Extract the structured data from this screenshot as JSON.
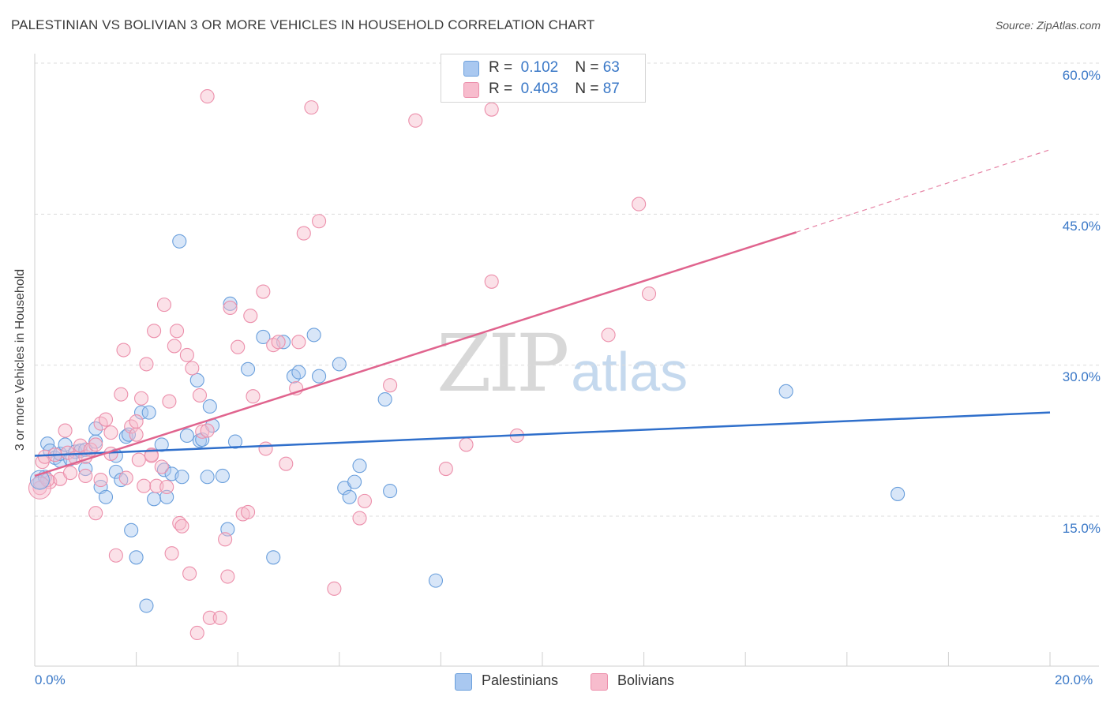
{
  "header": {
    "title": "PALESTINIAN VS BOLIVIAN 3 OR MORE VEHICLES IN HOUSEHOLD CORRELATION CHART",
    "source": "Source: ZipAtlas.com"
  },
  "watermark": {
    "zip": "ZIP",
    "atlas": "atlas"
  },
  "colors": {
    "palestinian_fill": "#a9c8f0",
    "palestinian_stroke": "#6a9fdc",
    "palestinian_line": "#2f6fcb",
    "bolivian_fill": "#f7bccd",
    "bolivian_stroke": "#ec8fab",
    "bolivian_line": "#e0648e",
    "accent_text": "#3a78c7"
  },
  "legend": {
    "rows": [
      {
        "r_label": "R =",
        "r_value": "0.102",
        "n_label": "N =",
        "n_value": "63"
      },
      {
        "r_label": "R =",
        "r_value": "0.403",
        "n_label": "N =",
        "n_value": "87"
      }
    ]
  },
  "bottom_legend": [
    "Palestinians",
    "Bolivians"
  ],
  "chart_data": {
    "type": "scatter",
    "title": "PALESTINIAN VS BOLIVIAN 3 OR MORE VEHICLES IN HOUSEHOLD CORRELATION CHART",
    "xlabel": "",
    "ylabel": "3 or more Vehicles in Household",
    "xlim": [
      0,
      20
    ],
    "ylim": [
      0,
      62
    ],
    "x_tick_labels": [
      "0.0%",
      "20.0%"
    ],
    "y_ticks": [
      15,
      30,
      45,
      60
    ],
    "y_tick_labels": [
      "15.0%",
      "30.0%",
      "45.0%",
      "60.0%"
    ],
    "grid": true,
    "series": [
      {
        "name": "Palestinians",
        "R": 0.102,
        "N": 63,
        "trend": {
          "x0": 0,
          "y0": 21.0,
          "x1": 20,
          "y1": 25.3
        },
        "points": [
          [
            0.1,
            18.4
          ],
          [
            0.2,
            18.9
          ],
          [
            0.25,
            22.2
          ],
          [
            0.3,
            21.5
          ],
          [
            0.4,
            20.8
          ],
          [
            0.5,
            20.5
          ],
          [
            0.5,
            21.2
          ],
          [
            0.6,
            22.1
          ],
          [
            0.7,
            20.7
          ],
          [
            0.8,
            21.4
          ],
          [
            0.9,
            21.5
          ],
          [
            1.0,
            21.6
          ],
          [
            1.0,
            19.7
          ],
          [
            1.2,
            23.7
          ],
          [
            1.2,
            22.4
          ],
          [
            1.3,
            17.9
          ],
          [
            1.4,
            16.9
          ],
          [
            1.6,
            21.0
          ],
          [
            1.6,
            19.4
          ],
          [
            1.7,
            18.6
          ],
          [
            1.8,
            22.9
          ],
          [
            1.85,
            23.1
          ],
          [
            1.9,
            13.6
          ],
          [
            2.0,
            10.9
          ],
          [
            2.1,
            25.3
          ],
          [
            2.2,
            6.1
          ],
          [
            2.25,
            25.3
          ],
          [
            2.35,
            16.7
          ],
          [
            2.5,
            22.1
          ],
          [
            2.55,
            19.6
          ],
          [
            2.6,
            16.9
          ],
          [
            2.7,
            19.2
          ],
          [
            2.85,
            42.3
          ],
          [
            2.9,
            18.9
          ],
          [
            3.0,
            23.0
          ],
          [
            3.2,
            28.5
          ],
          [
            3.25,
            22.5
          ],
          [
            3.3,
            22.6
          ],
          [
            3.4,
            18.9
          ],
          [
            3.45,
            25.9
          ],
          [
            3.5,
            24.0
          ],
          [
            3.7,
            19.0
          ],
          [
            3.8,
            13.7
          ],
          [
            3.85,
            36.1
          ],
          [
            3.95,
            22.4
          ],
          [
            4.2,
            29.6
          ],
          [
            4.5,
            32.8
          ],
          [
            4.7,
            10.9
          ],
          [
            4.9,
            32.3
          ],
          [
            5.1,
            28.9
          ],
          [
            5.2,
            29.3
          ],
          [
            5.5,
            33.0
          ],
          [
            5.6,
            28.9
          ],
          [
            6.0,
            30.1
          ],
          [
            6.1,
            17.8
          ],
          [
            6.2,
            16.9
          ],
          [
            6.3,
            18.4
          ],
          [
            6.4,
            20.0
          ],
          [
            6.9,
            26.6
          ],
          [
            7.0,
            17.5
          ],
          [
            7.9,
            8.6
          ],
          [
            14.8,
            27.4
          ],
          [
            17.0,
            17.2
          ]
        ]
      },
      {
        "name": "Bolivians",
        "R": 0.403,
        "N": 87,
        "trend": {
          "x0": 0,
          "y0": 19.0,
          "x1": 15.0,
          "y1": 43.2
        },
        "trend_dashed": {
          "x0": 15.0,
          "y0": 43.2,
          "x1": 20,
          "y1": 51.4
        },
        "points": [
          [
            0.1,
            17.8
          ],
          [
            0.15,
            20.4
          ],
          [
            0.2,
            20.9
          ],
          [
            0.3,
            18.4
          ],
          [
            0.4,
            21.1
          ],
          [
            0.5,
            18.7
          ],
          [
            0.6,
            23.5
          ],
          [
            0.65,
            21.3
          ],
          [
            0.7,
            19.3
          ],
          [
            0.8,
            20.8
          ],
          [
            0.9,
            22.0
          ],
          [
            1.0,
            20.9
          ],
          [
            1.1,
            21.6
          ],
          [
            1.2,
            22.1
          ],
          [
            1.2,
            15.3
          ],
          [
            1.3,
            18.6
          ],
          [
            1.3,
            24.2
          ],
          [
            1.4,
            24.6
          ],
          [
            1.5,
            21.2
          ],
          [
            1.5,
            23.3
          ],
          [
            1.6,
            11.1
          ],
          [
            1.7,
            27.1
          ],
          [
            1.75,
            31.5
          ],
          [
            1.8,
            18.8
          ],
          [
            1.9,
            23.9
          ],
          [
            2.0,
            24.4
          ],
          [
            2.05,
            20.6
          ],
          [
            2.1,
            26.7
          ],
          [
            2.15,
            18.0
          ],
          [
            2.2,
            30.1
          ],
          [
            2.3,
            21.1
          ],
          [
            2.3,
            21.0
          ],
          [
            2.35,
            33.4
          ],
          [
            2.4,
            18.0
          ],
          [
            2.5,
            19.9
          ],
          [
            2.55,
            36.0
          ],
          [
            2.6,
            17.9
          ],
          [
            2.65,
            26.4
          ],
          [
            2.7,
            11.3
          ],
          [
            2.75,
            31.9
          ],
          [
            2.8,
            33.4
          ],
          [
            2.85,
            14.3
          ],
          [
            2.9,
            14.0
          ],
          [
            3.0,
            31.0
          ],
          [
            3.05,
            9.3
          ],
          [
            3.1,
            29.7
          ],
          [
            3.2,
            3.4
          ],
          [
            3.25,
            27.0
          ],
          [
            3.3,
            23.4
          ],
          [
            3.4,
            56.7
          ],
          [
            3.45,
            4.9
          ],
          [
            3.65,
            4.9
          ],
          [
            3.75,
            12.7
          ],
          [
            3.8,
            9.0
          ],
          [
            3.85,
            35.7
          ],
          [
            4.0,
            31.8
          ],
          [
            4.1,
            15.2
          ],
          [
            4.2,
            15.4
          ],
          [
            4.25,
            34.9
          ],
          [
            4.3,
            26.9
          ],
          [
            4.5,
            37.3
          ],
          [
            4.55,
            21.7
          ],
          [
            4.7,
            32.0
          ],
          [
            4.8,
            32.3
          ],
          [
            4.95,
            20.2
          ],
          [
            5.15,
            27.7
          ],
          [
            5.2,
            32.3
          ],
          [
            5.3,
            43.1
          ],
          [
            5.45,
            55.6
          ],
          [
            5.6,
            44.3
          ],
          [
            5.9,
            7.8
          ],
          [
            6.4,
            14.8
          ],
          [
            6.5,
            16.5
          ],
          [
            7.0,
            28.0
          ],
          [
            7.5,
            54.3
          ],
          [
            8.1,
            19.7
          ],
          [
            8.5,
            22.1
          ],
          [
            9.0,
            38.3
          ],
          [
            9.0,
            55.4
          ],
          [
            9.5,
            23.0
          ],
          [
            11.3,
            33.0
          ],
          [
            11.9,
            46.0
          ],
          [
            12.1,
            37.1
          ],
          [
            0.25,
            18.6
          ],
          [
            1.0,
            19.0
          ],
          [
            2.0,
            23.1
          ],
          [
            3.4,
            23.5
          ]
        ]
      }
    ]
  }
}
